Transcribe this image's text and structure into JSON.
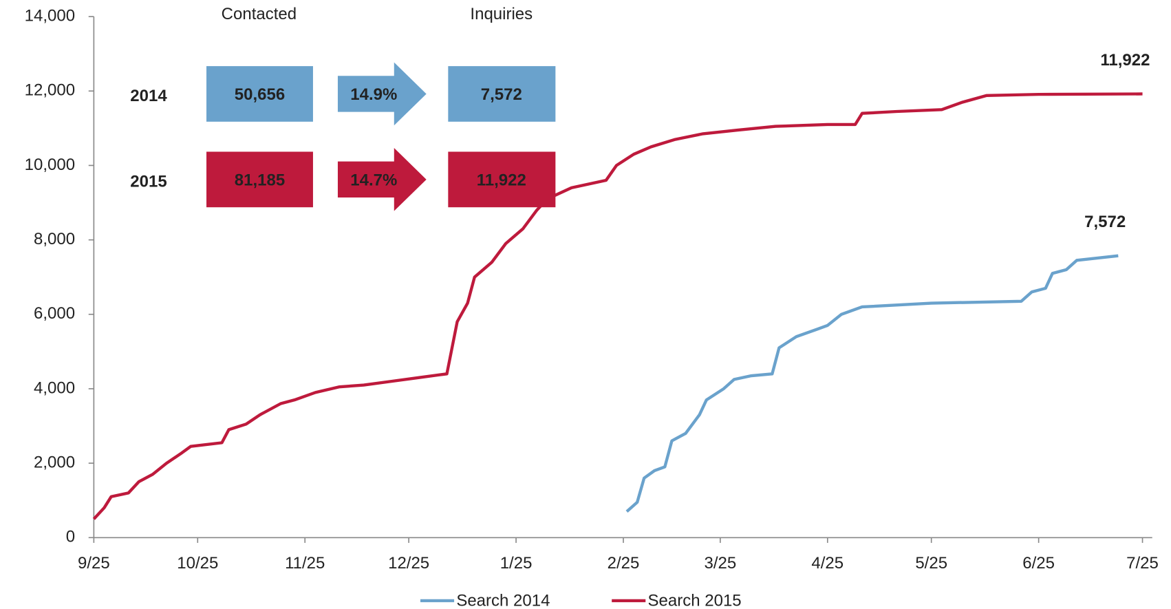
{
  "chart_data": {
    "type": "line",
    "xlim": [
      "9/25",
      "7/25"
    ],
    "xticks": [
      "9/25",
      "10/25",
      "11/25",
      "12/25",
      "1/25",
      "2/25",
      "3/25",
      "4/25",
      "5/25",
      "6/25",
      "7/25"
    ],
    "ylim": [
      0,
      14000
    ],
    "yticks": [
      0,
      {
        "value": 2000,
        "label": "2,000"
      },
      {
        "value": 4000,
        "label": "4,000"
      },
      {
        "value": 6000,
        "label": "6,000"
      },
      {
        "value": 8000,
        "label": "8,000"
      },
      {
        "value": 10000,
        "label": "10,000"
      },
      {
        "value": 12000,
        "label": "12,000"
      },
      {
        "value": 14000,
        "label": "14,000"
      }
    ],
    "legend": "bottom",
    "series": [
      {
        "name": "Search 2014",
        "color": "#6aa2cc",
        "x": [
          "2/26",
          "3/1",
          "3/3",
          "3/6",
          "3/9",
          "3/11",
          "3/15",
          "3/19",
          "3/21",
          "3/26",
          "3/29",
          "4/3",
          "4/9",
          "4/11",
          "4/16",
          "4/22",
          "4/25",
          "4/29",
          "5/5",
          "5/25",
          "6/20",
          "6/23",
          "6/27",
          "6/29",
          "7/3",
          "7/6",
          "7/18"
        ],
        "values": [
          700,
          950,
          1600,
          1800,
          1900,
          2600,
          2800,
          3300,
          3700,
          4000,
          4250,
          4350,
          4400,
          5100,
          5400,
          5600,
          5700,
          6000,
          6200,
          6300,
          6350,
          6600,
          6700,
          7100,
          7200,
          7450,
          7572
        ],
        "end_label": "7,572"
      },
      {
        "name": "Search 2015",
        "color": "#be1a3c",
        "x": [
          "9/25",
          "9/28",
          "9/30",
          "10/5",
          "10/8",
          "10/12",
          "10/16",
          "10/20",
          "10/23",
          "11/1",
          "11/3",
          "11/8",
          "11/12",
          "11/18",
          "11/22",
          "11/28",
          "12/5",
          "12/12",
          "12/20",
          "12/28",
          "1/5",
          "1/8",
          "1/11",
          "1/13",
          "1/18",
          "1/22",
          "1/27",
          "1/31",
          "2/3",
          "2/10",
          "2/20",
          "2/23",
          "2/28",
          "3/5",
          "3/12",
          "3/20",
          "3/30",
          "4/10",
          "4/25",
          "5/3",
          "5/5",
          "5/15",
          "5/28",
          "6/3",
          "6/10",
          "6/25",
          "7/25"
        ],
        "values": [
          500,
          800,
          1100,
          1200,
          1500,
          1700,
          2000,
          2250,
          2450,
          2550,
          2900,
          3050,
          3300,
          3600,
          3700,
          3900,
          4050,
          4100,
          4200,
          4300,
          4400,
          5800,
          6300,
          7000,
          7400,
          7900,
          8300,
          8800,
          9100,
          9400,
          9600,
          10000,
          10300,
          10500,
          10700,
          10850,
          10950,
          11050,
          11100,
          11100,
          11400,
          11450,
          11500,
          11700,
          11880,
          11910,
          11922
        ],
        "end_label": "11,922"
      }
    ],
    "funnel": {
      "headers": [
        "Contacted",
        "Inquiries"
      ],
      "rows": [
        {
          "label": "2014",
          "contacted": "50,656",
          "rate": "14.9%",
          "inquiries": "7,572",
          "color": "#6aa2cc"
        },
        {
          "label": "2015",
          "contacted": "81,185",
          "rate": "14.7%",
          "inquiries": "11,922",
          "color": "#be1a3c"
        }
      ]
    }
  }
}
